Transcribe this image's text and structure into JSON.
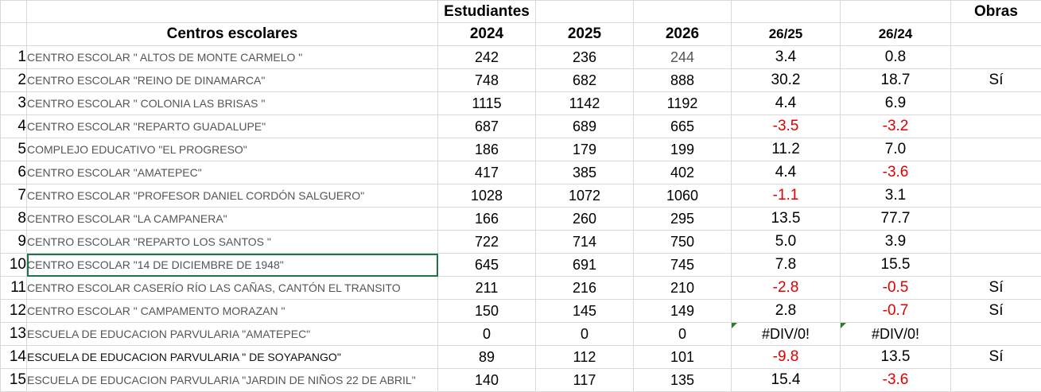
{
  "header": {
    "estudiantes": "Estudiantes",
    "obras": "Obras",
    "centros": "Centros escolares",
    "y2024": "2024",
    "y2025": "2025",
    "y2026": "2026",
    "r2625": "26/25",
    "r2624": "26/24"
  },
  "rows": [
    {
      "n": "1",
      "name": "CENTRO ESCOLAR \" ALTOS DE MONTE CARMELO \"",
      "a": "242",
      "b": "236",
      "c": "244",
      "d": "3.4",
      "e": "0.8",
      "obras": ""
    },
    {
      "n": "2",
      "name": "CENTRO ESCOLAR \"REINO DE DINAMARCA\"",
      "a": "748",
      "b": "682",
      "c": "888",
      "d": "30.2",
      "e": "18.7",
      "obras": "Sí"
    },
    {
      "n": "3",
      "name": "CENTRO ESCOLAR \" COLONIA LAS BRISAS \"",
      "a": "1115",
      "b": "1142",
      "c": "1192",
      "d": "4.4",
      "e": "6.9",
      "obras": ""
    },
    {
      "n": "4",
      "name": "CENTRO ESCOLAR \"REPARTO GUADALUPE\"",
      "a": "687",
      "b": "689",
      "c": "665",
      "d": "-3.5",
      "e": "-3.2",
      "obras": ""
    },
    {
      "n": "5",
      "name": "COMPLEJO EDUCATIVO \"EL PROGRESO\"",
      "a": "186",
      "b": "179",
      "c": "199",
      "d": "11.2",
      "e": "7.0",
      "obras": ""
    },
    {
      "n": "6",
      "name": "CENTRO ESCOLAR \"AMATEPEC\"",
      "a": "417",
      "b": "385",
      "c": "402",
      "d": "4.4",
      "e": "-3.6",
      "obras": ""
    },
    {
      "n": "7",
      "name": "CENTRO ESCOLAR \"PROFESOR DANIEL CORDÓN SALGUERO\"",
      "a": "1028",
      "b": "1072",
      "c": "1060",
      "d": "-1.1",
      "e": "3.1",
      "obras": ""
    },
    {
      "n": "8",
      "name": "CENTRO ESCOLAR \"LA CAMPANERA\"",
      "a": "166",
      "b": "260",
      "c": "295",
      "d": "13.5",
      "e": "77.7",
      "obras": ""
    },
    {
      "n": "9",
      "name": "CENTRO ESCOLAR \"REPARTO LOS SANTOS \"",
      "a": "722",
      "b": "714",
      "c": "750",
      "d": "5.0",
      "e": "3.9",
      "obras": ""
    },
    {
      "n": "10",
      "name": "CENTRO ESCOLAR \"14 DE DICIEMBRE DE 1948\"",
      "a": "645",
      "b": "691",
      "c": "745",
      "d": "7.8",
      "e": "15.5",
      "obras": ""
    },
    {
      "n": "11",
      "name": "CENTRO ESCOLAR CASERÍO RÍO LAS CAÑAS, CANTÓN EL TRANSITO",
      "a": "211",
      "b": "216",
      "c": "210",
      "d": "-2.8",
      "e": "-0.5",
      "obras": "Sí"
    },
    {
      "n": "12",
      "name": "CENTRO ESCOLAR \" CAMPAMENTO MORAZAN \"",
      "a": "150",
      "b": "145",
      "c": "149",
      "d": "2.8",
      "e": "-0.7",
      "obras": "Sí"
    },
    {
      "n": "13",
      "name": "ESCUELA DE EDUCACION PARVULARIA \"AMATEPEC\"",
      "a": "0",
      "b": "0",
      "c": "0",
      "d": "#DIV/0!",
      "e": "#DIV/0!",
      "obras": ""
    },
    {
      "n": "14",
      "name": "ESCUELA DE EDUCACION PARVULARIA \" DE SOYAPANGO\"",
      "a": "89",
      "b": "112",
      "c": "101",
      "d": "-9.8",
      "e": "13.5",
      "obras": "Sí"
    },
    {
      "n": "15",
      "name": "ESCUELA DE EDUCACION PARVULARIA \"JARDIN DE NIÑOS 22 DE ABRIL\"",
      "a": "140",
      "b": "117",
      "c": "135",
      "d": "15.4",
      "e": "-3.6",
      "obras": ""
    }
  ],
  "colors": {
    "negative": "#e00000",
    "selection": "#217346",
    "error_flag": "#2a7f2a"
  }
}
